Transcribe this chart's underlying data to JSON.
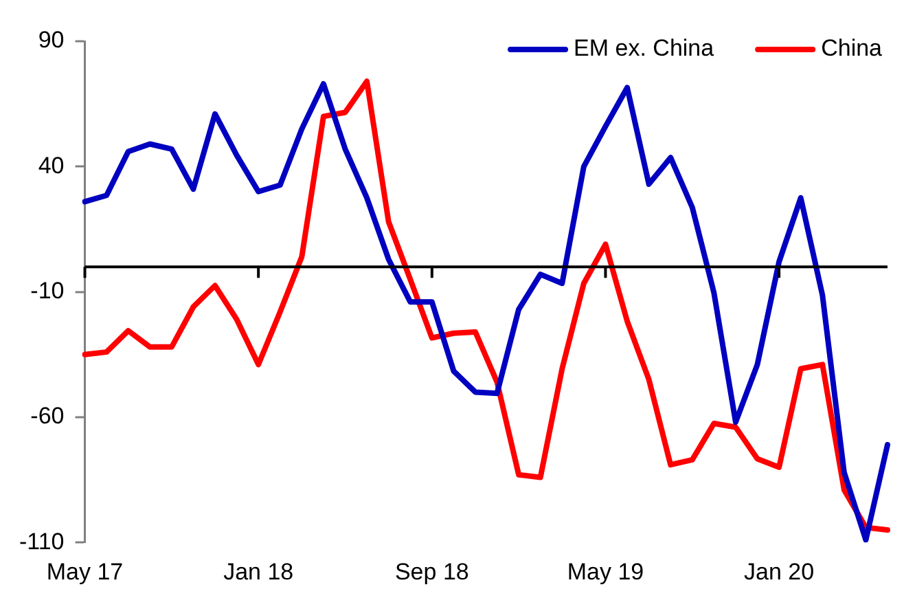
{
  "chart_data": {
    "type": "line",
    "categories": [
      "May 17",
      null,
      null,
      null,
      null,
      null,
      null,
      null,
      "Jan 18",
      null,
      null,
      null,
      null,
      null,
      null,
      null,
      "Sep 18",
      null,
      null,
      null,
      null,
      null,
      null,
      null,
      "May 19",
      null,
      null,
      null,
      null,
      null,
      null,
      null,
      "Jan 20",
      null,
      null,
      null,
      null,
      null
    ],
    "series": [
      {
        "name": "EM ex. China",
        "color": "#0000c0",
        "values": [
          26,
          28.5,
          46,
          49,
          47,
          31,
          61,
          44.5,
          30,
          32.6,
          55,
          73,
          47,
          27.5,
          3,
          -14,
          -14,
          -41.6,
          -50,
          -50.5,
          -17,
          -3,
          -6.6,
          40,
          56,
          71.5,
          33,
          43.6,
          23.7,
          -10.4,
          -62,
          -39,
          2,
          27.5,
          -11.3,
          -82,
          -109,
          -71
        ]
      },
      {
        "name": "China",
        "color": "#ff0000",
        "values": [
          -35,
          -34,
          -25.5,
          -32,
          -32,
          -16,
          -7.5,
          -21,
          -39,
          -18,
          4,
          60,
          61.6,
          74,
          18,
          -5,
          -28.4,
          -26.5,
          -26,
          -46,
          -83,
          -84,
          -40.7,
          -6.6,
          9,
          -21.7,
          -45,
          -79,
          -77,
          -62.5,
          -64,
          -76.6,
          -80,
          -40.7,
          -39,
          -89,
          -104,
          -105
        ]
      }
    ],
    "ylim": [
      -110,
      90
    ],
    "yticks": [
      -110,
      -60,
      -10,
      40,
      90
    ],
    "ref_lines": [
      {
        "axis": "y",
        "value": 0,
        "color": "#000000"
      }
    ],
    "grid": false,
    "legend": "top right",
    "marker": "none",
    "line_style": "solid"
  }
}
